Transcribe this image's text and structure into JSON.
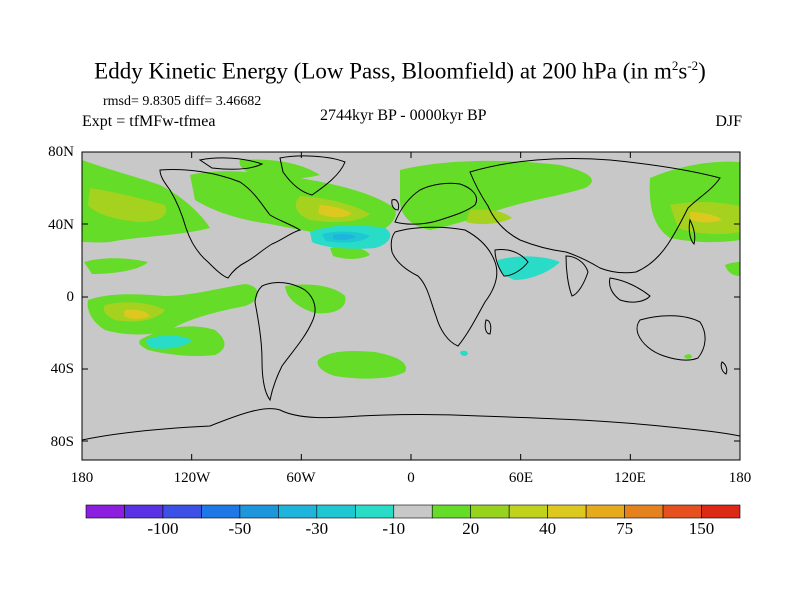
{
  "title": {
    "main": "Eddy Kinetic Energy (Low Pass, Bloomfield) at 200 hPa (in m",
    "sup1": "2",
    "mid": "s",
    "sup2": "-2",
    "end": ")"
  },
  "stats": "rmsd= 9.8305 diff= 3.46682",
  "experiment": "Expt = tfMFw-tfmea",
  "period": "2744kyr BP - 0000kyr BP",
  "season": "DJF",
  "lat_labels": [
    "80N",
    "40N",
    "0",
    "40S",
    "80S"
  ],
  "lon_labels": [
    "180",
    "120W",
    "60W",
    "0",
    "60E",
    "120E",
    "180"
  ],
  "colorbar": {
    "labels": [
      "-100",
      "-50",
      "-30",
      "-10",
      "20",
      "40",
      "75",
      "150"
    ],
    "colors": [
      "#8c1ee0",
      "#5a32e6",
      "#3c50e6",
      "#1e78e6",
      "#1e96dc",
      "#1eb4dc",
      "#1ec8d2",
      "#28dcc8",
      "#c8c8c8",
      "#64dc28",
      "#96d21e",
      "#bed21e",
      "#dcc81e",
      "#e6aa1e",
      "#e6821e",
      "#e6501e",
      "#dc2814"
    ]
  },
  "colors": {
    "land_background": "#c8c8c8",
    "positive_low": "#64dc28",
    "positive_mid": "#a5d21e",
    "positive_high": "#dcc81e",
    "negative_low": "#28dcc8",
    "negative_mid": "#1ec8d2",
    "negative_high": "#1eb4dc"
  }
}
